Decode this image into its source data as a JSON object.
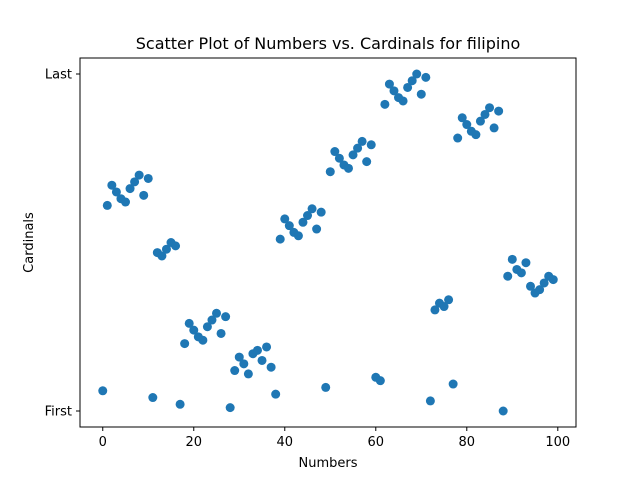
{
  "chart_data": {
    "type": "scatter",
    "title": "Scatter Plot of Numbers vs. Cardinals for filipino",
    "xlabel": "Numbers",
    "ylabel": "Cardinals",
    "xlim": [
      -5,
      104
    ],
    "ylim": [
      0,
      1
    ],
    "x_ticks": [
      0,
      20,
      40,
      60,
      80,
      100
    ],
    "y_ticks": [
      {
        "value": 0.0,
        "label": "First"
      },
      {
        "value": 1.0,
        "label": "Last"
      }
    ],
    "grid": false,
    "legend": false,
    "marker_color": "#1f77b4",
    "points": [
      {
        "x": 0,
        "y": 0.06
      },
      {
        "x": 1,
        "y": 0.61
      },
      {
        "x": 2,
        "y": 0.67
      },
      {
        "x": 3,
        "y": 0.65
      },
      {
        "x": 4,
        "y": 0.63
      },
      {
        "x": 5,
        "y": 0.62
      },
      {
        "x": 6,
        "y": 0.66
      },
      {
        "x": 7,
        "y": 0.68
      },
      {
        "x": 8,
        "y": 0.7
      },
      {
        "x": 9,
        "y": 0.64
      },
      {
        "x": 10,
        "y": 0.69
      },
      {
        "x": 11,
        "y": 0.04
      },
      {
        "x": 12,
        "y": 0.47
      },
      {
        "x": 13,
        "y": 0.46
      },
      {
        "x": 14,
        "y": 0.48
      },
      {
        "x": 15,
        "y": 0.5
      },
      {
        "x": 16,
        "y": 0.49
      },
      {
        "x": 17,
        "y": 0.02
      },
      {
        "x": 18,
        "y": 0.2
      },
      {
        "x": 19,
        "y": 0.26
      },
      {
        "x": 20,
        "y": 0.24
      },
      {
        "x": 21,
        "y": 0.22
      },
      {
        "x": 22,
        "y": 0.21
      },
      {
        "x": 23,
        "y": 0.25
      },
      {
        "x": 24,
        "y": 0.27
      },
      {
        "x": 25,
        "y": 0.29
      },
      {
        "x": 26,
        "y": 0.23
      },
      {
        "x": 27,
        "y": 0.28
      },
      {
        "x": 28,
        "y": 0.01
      },
      {
        "x": 29,
        "y": 0.12
      },
      {
        "x": 30,
        "y": 0.16
      },
      {
        "x": 31,
        "y": 0.14
      },
      {
        "x": 32,
        "y": 0.11
      },
      {
        "x": 33,
        "y": 0.17
      },
      {
        "x": 34,
        "y": 0.18
      },
      {
        "x": 35,
        "y": 0.15
      },
      {
        "x": 36,
        "y": 0.19
      },
      {
        "x": 37,
        "y": 0.13
      },
      {
        "x": 38,
        "y": 0.05
      },
      {
        "x": 39,
        "y": 0.51
      },
      {
        "x": 40,
        "y": 0.57
      },
      {
        "x": 41,
        "y": 0.55
      },
      {
        "x": 42,
        "y": 0.53
      },
      {
        "x": 43,
        "y": 0.52
      },
      {
        "x": 44,
        "y": 0.56
      },
      {
        "x": 45,
        "y": 0.58
      },
      {
        "x": 46,
        "y": 0.6
      },
      {
        "x": 47,
        "y": 0.54
      },
      {
        "x": 48,
        "y": 0.59
      },
      {
        "x": 49,
        "y": 0.07
      },
      {
        "x": 50,
        "y": 0.71
      },
      {
        "x": 51,
        "y": 0.77
      },
      {
        "x": 52,
        "y": 0.75
      },
      {
        "x": 53,
        "y": 0.73
      },
      {
        "x": 54,
        "y": 0.72
      },
      {
        "x": 55,
        "y": 0.76
      },
      {
        "x": 56,
        "y": 0.78
      },
      {
        "x": 57,
        "y": 0.8
      },
      {
        "x": 58,
        "y": 0.74
      },
      {
        "x": 59,
        "y": 0.79
      },
      {
        "x": 60,
        "y": 0.1
      },
      {
        "x": 61,
        "y": 0.09
      },
      {
        "x": 62,
        "y": 0.91
      },
      {
        "x": 63,
        "y": 0.97
      },
      {
        "x": 64,
        "y": 0.95
      },
      {
        "x": 65,
        "y": 0.93
      },
      {
        "x": 66,
        "y": 0.92
      },
      {
        "x": 67,
        "y": 0.96
      },
      {
        "x": 68,
        "y": 0.98
      },
      {
        "x": 69,
        "y": 1.0
      },
      {
        "x": 70,
        "y": 0.94
      },
      {
        "x": 71,
        "y": 0.99
      },
      {
        "x": 72,
        "y": 0.03
      },
      {
        "x": 73,
        "y": 0.3
      },
      {
        "x": 74,
        "y": 0.32
      },
      {
        "x": 75,
        "y": 0.31
      },
      {
        "x": 76,
        "y": 0.33
      },
      {
        "x": 77,
        "y": 0.08
      },
      {
        "x": 78,
        "y": 0.81
      },
      {
        "x": 79,
        "y": 0.87
      },
      {
        "x": 80,
        "y": 0.85
      },
      {
        "x": 81,
        "y": 0.83
      },
      {
        "x": 82,
        "y": 0.82
      },
      {
        "x": 83,
        "y": 0.86
      },
      {
        "x": 84,
        "y": 0.88
      },
      {
        "x": 85,
        "y": 0.9
      },
      {
        "x": 86,
        "y": 0.84
      },
      {
        "x": 87,
        "y": 0.89
      },
      {
        "x": 88,
        "y": 0.0
      },
      {
        "x": 89,
        "y": 0.4
      },
      {
        "x": 90,
        "y": 0.45
      },
      {
        "x": 91,
        "y": 0.42
      },
      {
        "x": 92,
        "y": 0.41
      },
      {
        "x": 93,
        "y": 0.44
      },
      {
        "x": 94,
        "y": 0.37
      },
      {
        "x": 95,
        "y": 0.35
      },
      {
        "x": 96,
        "y": 0.36
      },
      {
        "x": 97,
        "y": 0.38
      },
      {
        "x": 98,
        "y": 0.4
      },
      {
        "x": 99,
        "y": 0.39
      }
    ]
  }
}
